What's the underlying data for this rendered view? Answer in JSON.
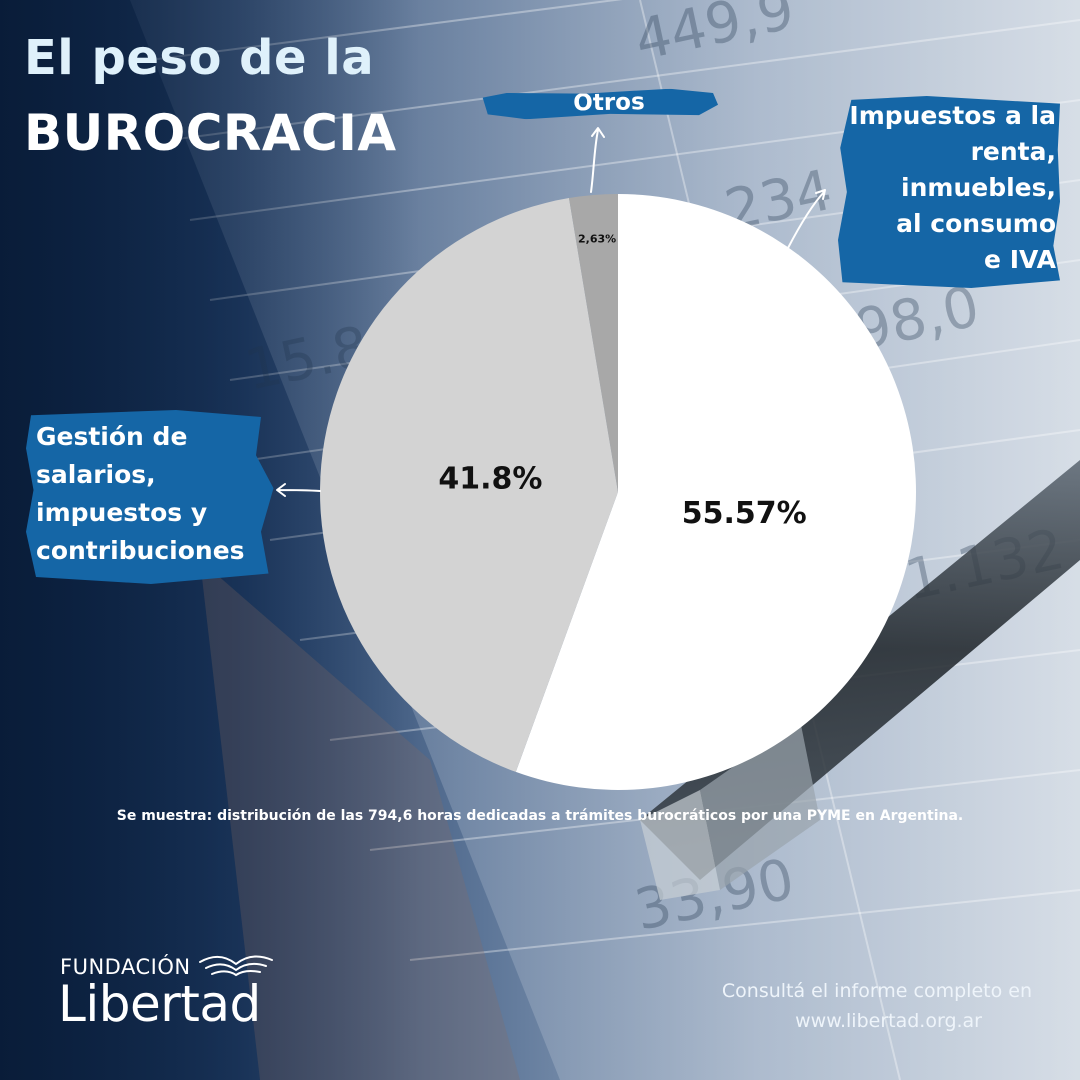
{
  "title": {
    "line1": "El peso de la",
    "line2": "BUROCRACIA"
  },
  "chart_data": {
    "type": "pie",
    "slices": [
      {
        "label": "Impuestos a la renta, inmuebles, al consumo e IVA",
        "value": 55.57,
        "display": "55.57%",
        "color": "#ffffff"
      },
      {
        "label": "Gestión de salarios, impuestos y contribuciones",
        "value": 41.8,
        "display": "41.8%",
        "color": "#d3d3d3"
      },
      {
        "label": "Otros",
        "value": 2.63,
        "display": "2,63%",
        "color": "#a8a8a8"
      }
    ],
    "callouts": {
      "otros": [
        "Otros"
      ],
      "impuestos": [
        "Impuestos a la",
        "renta,",
        "inmuebles,",
        "al consumo",
        "e IVA"
      ],
      "gestion": [
        "Gestión de",
        "salarios,",
        "impuestos y",
        "contribuciones"
      ]
    },
    "caption": "Se muestra: distribución de las 794,6 horas dedicadas a trámites burocráticos por una PYME en Argentina."
  },
  "colors": {
    "accent": "#1566a6",
    "title": "#dff1fb",
    "background_dark": "#0d2547"
  },
  "footer": {
    "logo_top": "FUNDACIÓN",
    "logo_bottom": "Libertad",
    "cta_line1": "Consultá el informe completo en",
    "cta_line2": "www.libertad.org.ar"
  },
  "icons": {
    "logo_mark": "bird-wings-icon",
    "callout_arrow": "arrow-icon"
  }
}
